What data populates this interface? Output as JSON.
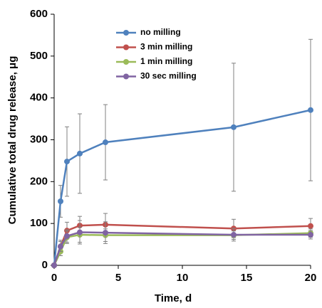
{
  "chart_data": {
    "type": "line",
    "xlabel": "Time, d",
    "ylabel": "Cumulative total drug release, μg",
    "xlim": [
      0,
      20
    ],
    "xticks": [
      0,
      5,
      10,
      15,
      20
    ],
    "ylim": [
      0,
      600
    ],
    "yticks": [
      0,
      100,
      200,
      300,
      400,
      500,
      600
    ],
    "grid": false,
    "legend": "upper center",
    "error_color": "#808080",
    "x": [
      0,
      0.5,
      1,
      2,
      4,
      14,
      20
    ],
    "series": [
      {
        "name": "no milling",
        "color": "#4f81bd",
        "values": [
          0,
          153,
          248,
          267,
          294,
          330,
          371
        ],
        "errors": [
          0,
          38,
          83,
          95,
          90,
          153,
          169
        ]
      },
      {
        "name": "3 min milling",
        "color": "#c0504d",
        "values": [
          0,
          45,
          83,
          95,
          97,
          88,
          94
        ],
        "errors": [
          0,
          15,
          20,
          22,
          27,
          22,
          18
        ]
      },
      {
        "name": "1 min milling",
        "color": "#9bbb59",
        "values": [
          0,
          33,
          67,
          73,
          72,
          72,
          77
        ],
        "errors": [
          0,
          10,
          15,
          18,
          15,
          10,
          10
        ]
      },
      {
        "name": "30 sec milling",
        "color": "#8064a2",
        "values": [
          0,
          45,
          70,
          79,
          78,
          73,
          73
        ],
        "errors": [
          0,
          12,
          15,
          28,
          26,
          15,
          10
        ]
      }
    ]
  }
}
